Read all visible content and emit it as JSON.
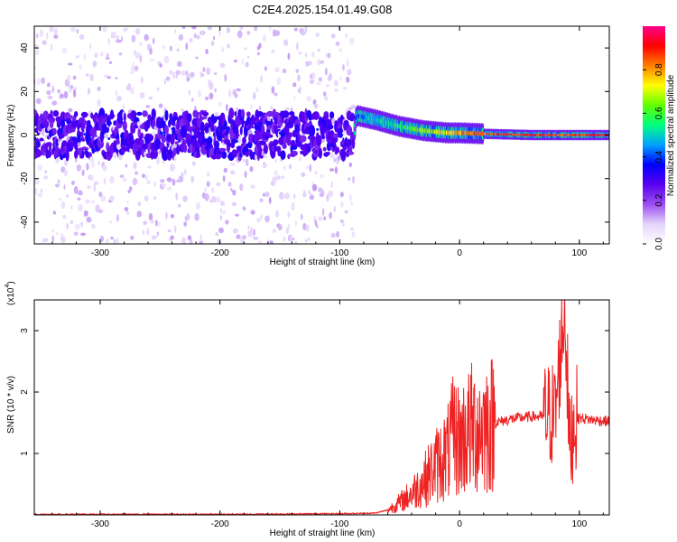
{
  "figure": {
    "title": "C2E4.2025.154.01.49.G08"
  },
  "chart_data": [
    {
      "type": "heatmap",
      "title": "C2E4.2025.154.01.49.G08",
      "xlabel": "Height of straight line (km)",
      "ylabel": "Frequency (Hz)",
      "xlim": [
        -355,
        125
      ],
      "ylim": [
        -50,
        50
      ],
      "x_ticks": [
        -300,
        -200,
        -100,
        0,
        100
      ],
      "y_ticks": [
        -40,
        -20,
        0,
        20,
        40
      ],
      "colorbar": {
        "label": "Normalized spectral amplitude",
        "range": [
          0.0,
          1.0
        ],
        "ticks": [
          0.0,
          0.2,
          0.4,
          0.6,
          0.8
        ],
        "colormap": [
          "#ffffff",
          "#e4d4fb",
          "#9c4ff0",
          "#5a00f0",
          "#0000ff",
          "#00a0ff",
          "#00ff80",
          "#60ff00",
          "#ffff00",
          "#ff8000",
          "#ff0000",
          "#ff0088"
        ]
      },
      "ridge": [
        {
          "x": -355,
          "y": 0,
          "amplitude": 0.2
        },
        {
          "x": -88,
          "y": 0,
          "amplitude": 0.22
        },
        {
          "x": -86,
          "y": 9,
          "amplitude": 0.45
        },
        {
          "x": -70,
          "y": 7,
          "amplitude": 0.55
        },
        {
          "x": -50,
          "y": 4,
          "amplitude": 0.6
        },
        {
          "x": -30,
          "y": 2,
          "amplitude": 0.7
        },
        {
          "x": -10,
          "y": 1,
          "amplitude": 0.8
        },
        {
          "x": 0,
          "y": 1,
          "amplitude": 0.85
        },
        {
          "x": 25,
          "y": 0.5,
          "amplitude": 0.9
        },
        {
          "x": 60,
          "y": 0,
          "amplitude": 0.95
        },
        {
          "x": 90,
          "y": 0,
          "amplitude": 0.9
        },
        {
          "x": 125,
          "y": 0,
          "amplitude": 0.95
        }
      ]
    },
    {
      "type": "line",
      "xlabel": "Height of straight line (km)",
      "ylabel": "SNR (10 * v/v)",
      "y_multiplier": "(x10",
      "y_multiplier_exp": "4",
      "y_multiplier_close": ")",
      "xlim": [
        -355,
        125
      ],
      "ylim": [
        0,
        3.5
      ],
      "x_ticks": [
        -300,
        -200,
        -100,
        0,
        100
      ],
      "y_ticks": [
        1,
        2,
        3
      ],
      "series": [
        {
          "color": "#ee2222",
          "points": [
            [
              -355,
              0.01
            ],
            [
              -300,
              0.01
            ],
            [
              -200,
              0.01
            ],
            [
              -100,
              0.02
            ],
            [
              -70,
              0.03
            ],
            [
              -60,
              0.08
            ],
            [
              -50,
              0.2
            ],
            [
              -40,
              0.35
            ],
            [
              -30,
              0.55
            ],
            [
              -20,
              0.8
            ],
            [
              -10,
              1.0
            ],
            [
              -5,
              1.3
            ],
            [
              0,
              1.2
            ],
            [
              10,
              1.4
            ],
            [
              20,
              1.45
            ],
            [
              30,
              1.5
            ],
            [
              40,
              1.55
            ],
            [
              50,
              1.58
            ],
            [
              60,
              1.6
            ],
            [
              70,
              1.6
            ],
            [
              80,
              1.65
            ],
            [
              85,
              2.8
            ],
            [
              88,
              3.4
            ],
            [
              92,
              1.0
            ],
            [
              95,
              1.5
            ],
            [
              100,
              1.58
            ],
            [
              110,
              1.55
            ],
            [
              125,
              1.52
            ]
          ]
        }
      ]
    }
  ]
}
